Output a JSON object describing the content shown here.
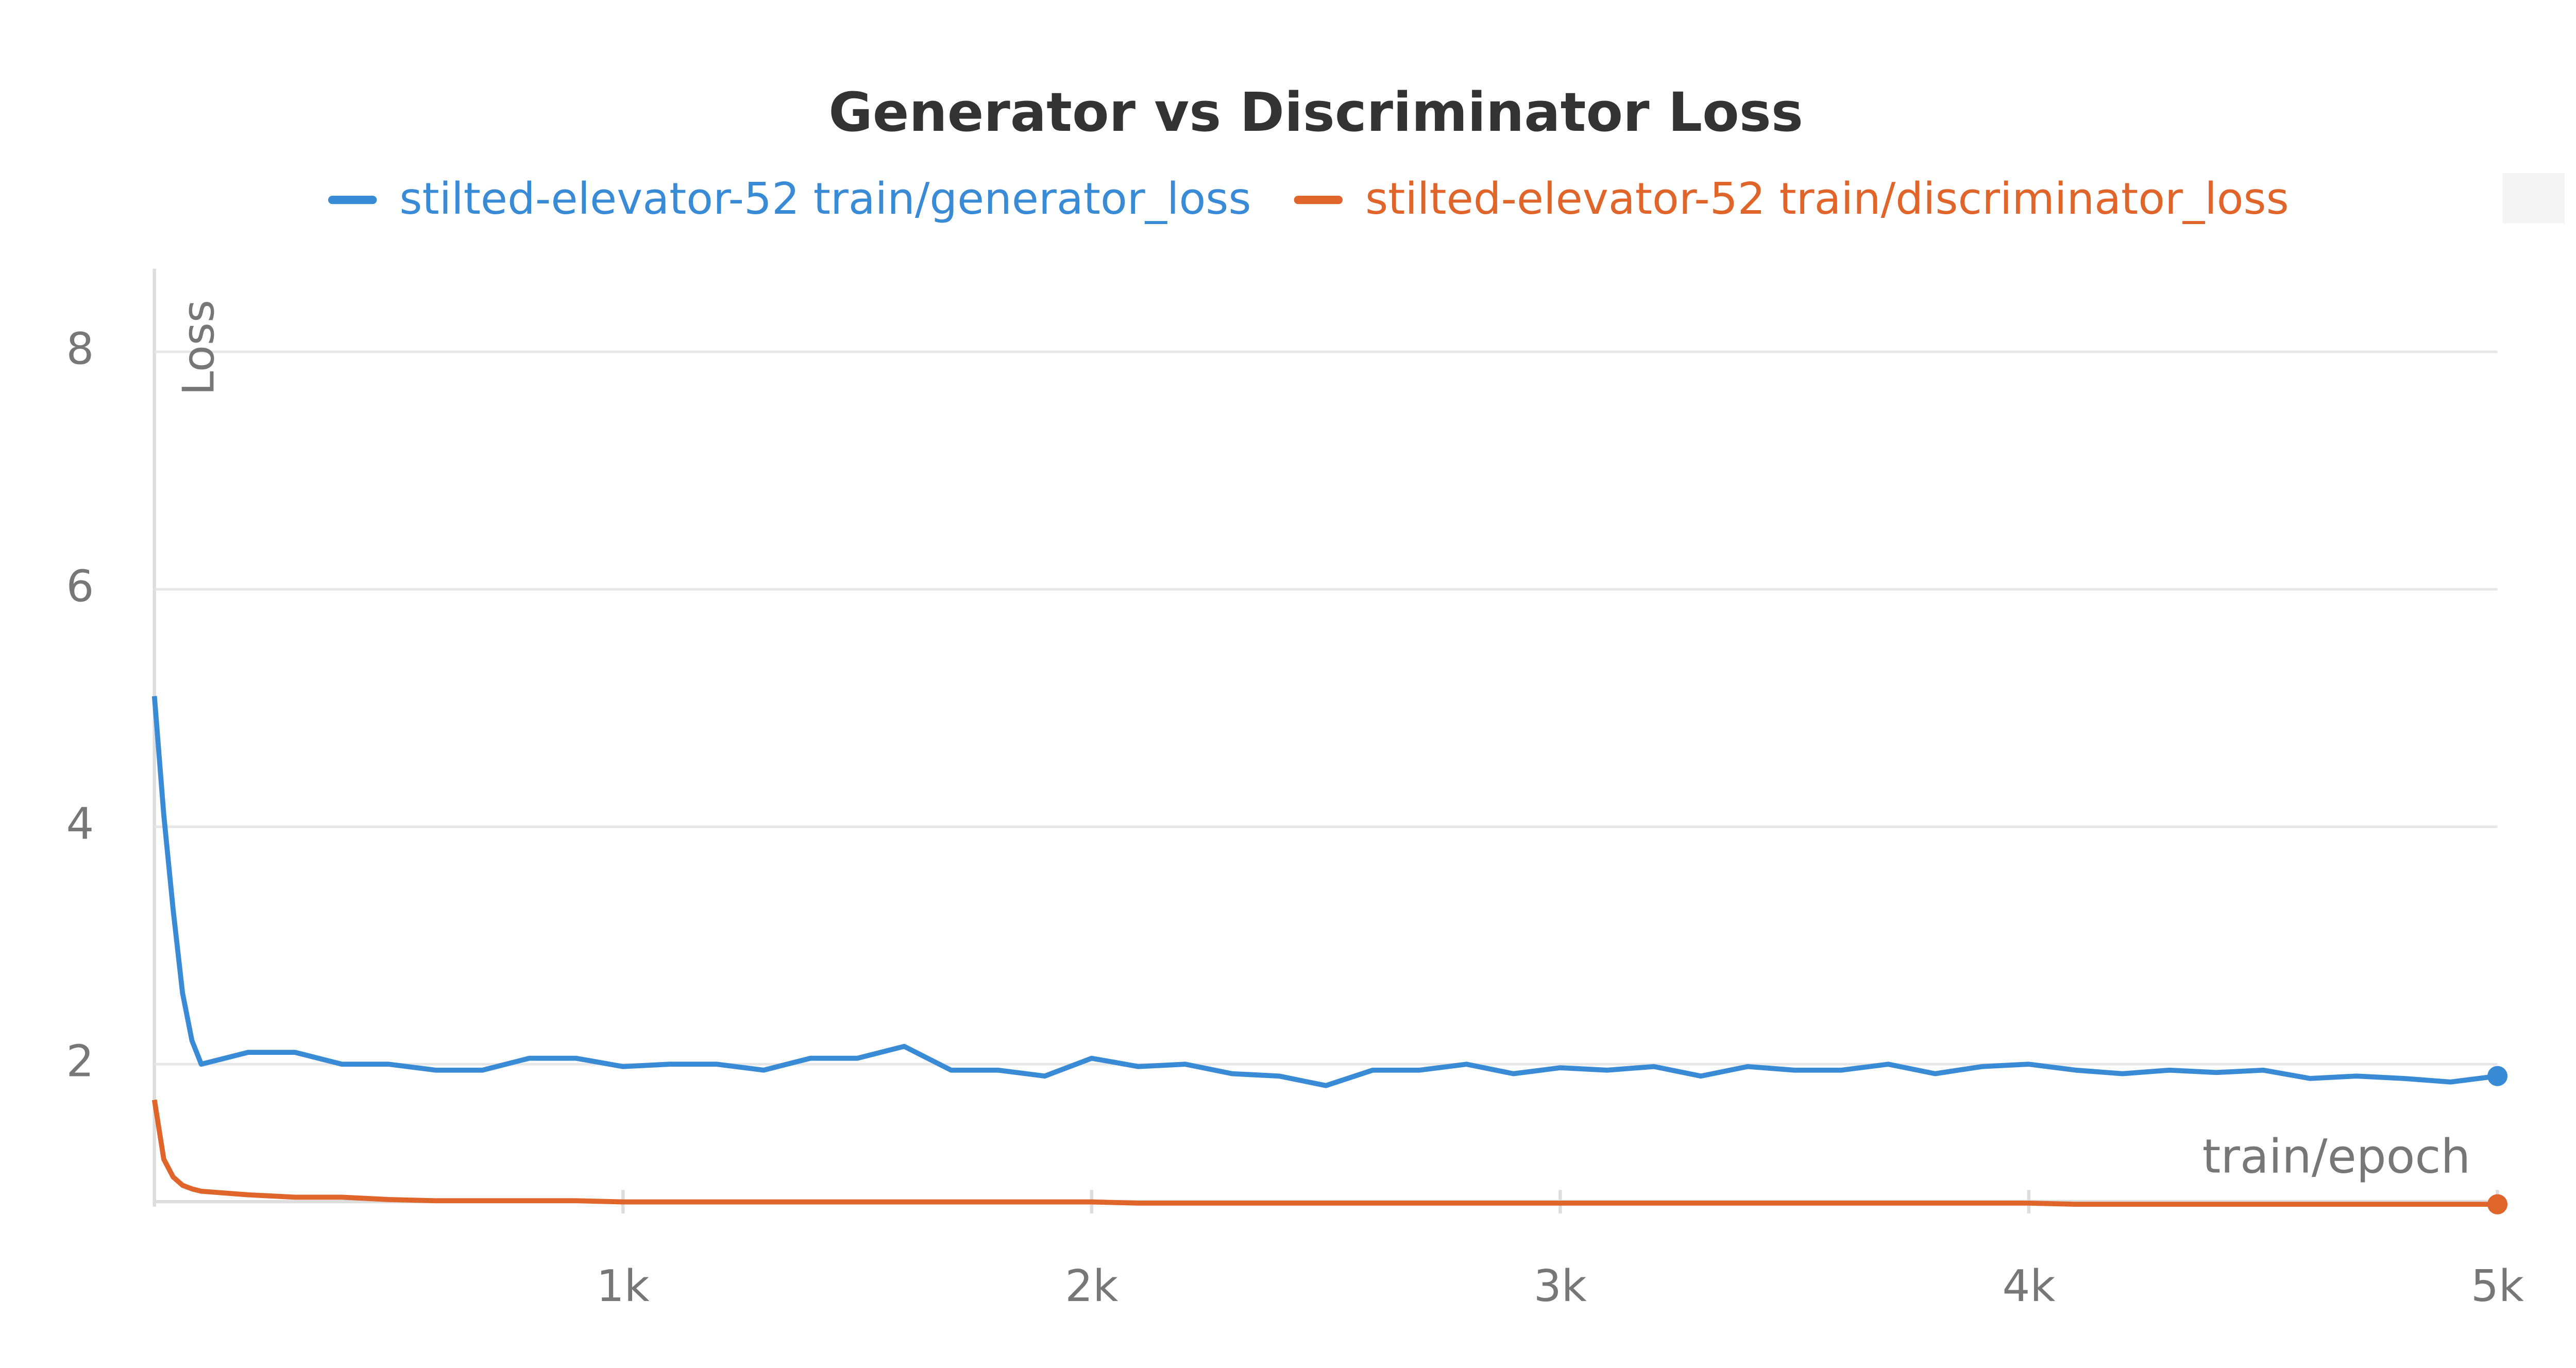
{
  "chart_data": {
    "type": "line",
    "title": "Generator vs Discriminator Loss",
    "x_label": "train/epoch",
    "y_label": "Loss",
    "x": [
      0,
      20,
      40,
      60,
      80,
      100,
      200,
      300,
      400,
      500,
      600,
      700,
      800,
      900,
      1000,
      1100,
      1200,
      1300,
      1400,
      1500,
      1600,
      1700,
      1800,
      1900,
      2000,
      2100,
      2200,
      2300,
      2400,
      2500,
      2600,
      2700,
      2800,
      2900,
      3000,
      3100,
      3200,
      3300,
      3400,
      3500,
      3600,
      3700,
      3800,
      3900,
      4000,
      4100,
      4200,
      4300,
      4400,
      4500,
      4600,
      4700,
      4800,
      4900,
      5000
    ],
    "series": [
      {
        "name": "stilted-elevator-52 train/generator_loss",
        "color": "#3a8bd6",
        "values": [
          5.1,
          4.1,
          3.3,
          2.6,
          2.2,
          2.0,
          2.1,
          2.1,
          2.0,
          2.0,
          1.95,
          1.95,
          2.05,
          2.05,
          1.98,
          2.0,
          2.0,
          1.95,
          2.05,
          2.05,
          2.15,
          1.95,
          1.95,
          1.9,
          2.05,
          1.98,
          2.0,
          1.92,
          1.9,
          1.82,
          1.95,
          1.95,
          2.0,
          1.92,
          1.97,
          1.95,
          1.98,
          1.9,
          1.98,
          1.95,
          1.95,
          2.0,
          1.92,
          1.98,
          2.0,
          1.95,
          1.92,
          1.95,
          1.93,
          1.95,
          1.88,
          1.9,
          1.88,
          1.85,
          1.9
        ]
      },
      {
        "name": "stilted-elevator-52 train/discriminator_loss",
        "color": "#e0652a",
        "values": [
          1.7,
          1.2,
          1.05,
          0.98,
          0.95,
          0.93,
          0.9,
          0.88,
          0.88,
          0.86,
          0.85,
          0.85,
          0.85,
          0.85,
          0.84,
          0.84,
          0.84,
          0.84,
          0.84,
          0.84,
          0.84,
          0.84,
          0.84,
          0.84,
          0.84,
          0.83,
          0.83,
          0.83,
          0.83,
          0.83,
          0.83,
          0.83,
          0.83,
          0.83,
          0.83,
          0.83,
          0.83,
          0.83,
          0.83,
          0.83,
          0.83,
          0.83,
          0.83,
          0.83,
          0.83,
          0.82,
          0.82,
          0.82,
          0.82,
          0.82,
          0.82,
          0.82,
          0.82,
          0.82,
          0.82
        ]
      }
    ],
    "xlim": [
      0,
      5000
    ],
    "xticks": [
      {
        "value": 1000,
        "label": "1k"
      },
      {
        "value": 2000,
        "label": "2k"
      },
      {
        "value": 3000,
        "label": "3k"
      },
      {
        "value": 4000,
        "label": "4k"
      },
      {
        "value": 5000,
        "label": "5k"
      }
    ],
    "ylim": [
      0.8,
      8.7
    ],
    "yticks": [
      2,
      4,
      6,
      8
    ],
    "grid": true
  }
}
